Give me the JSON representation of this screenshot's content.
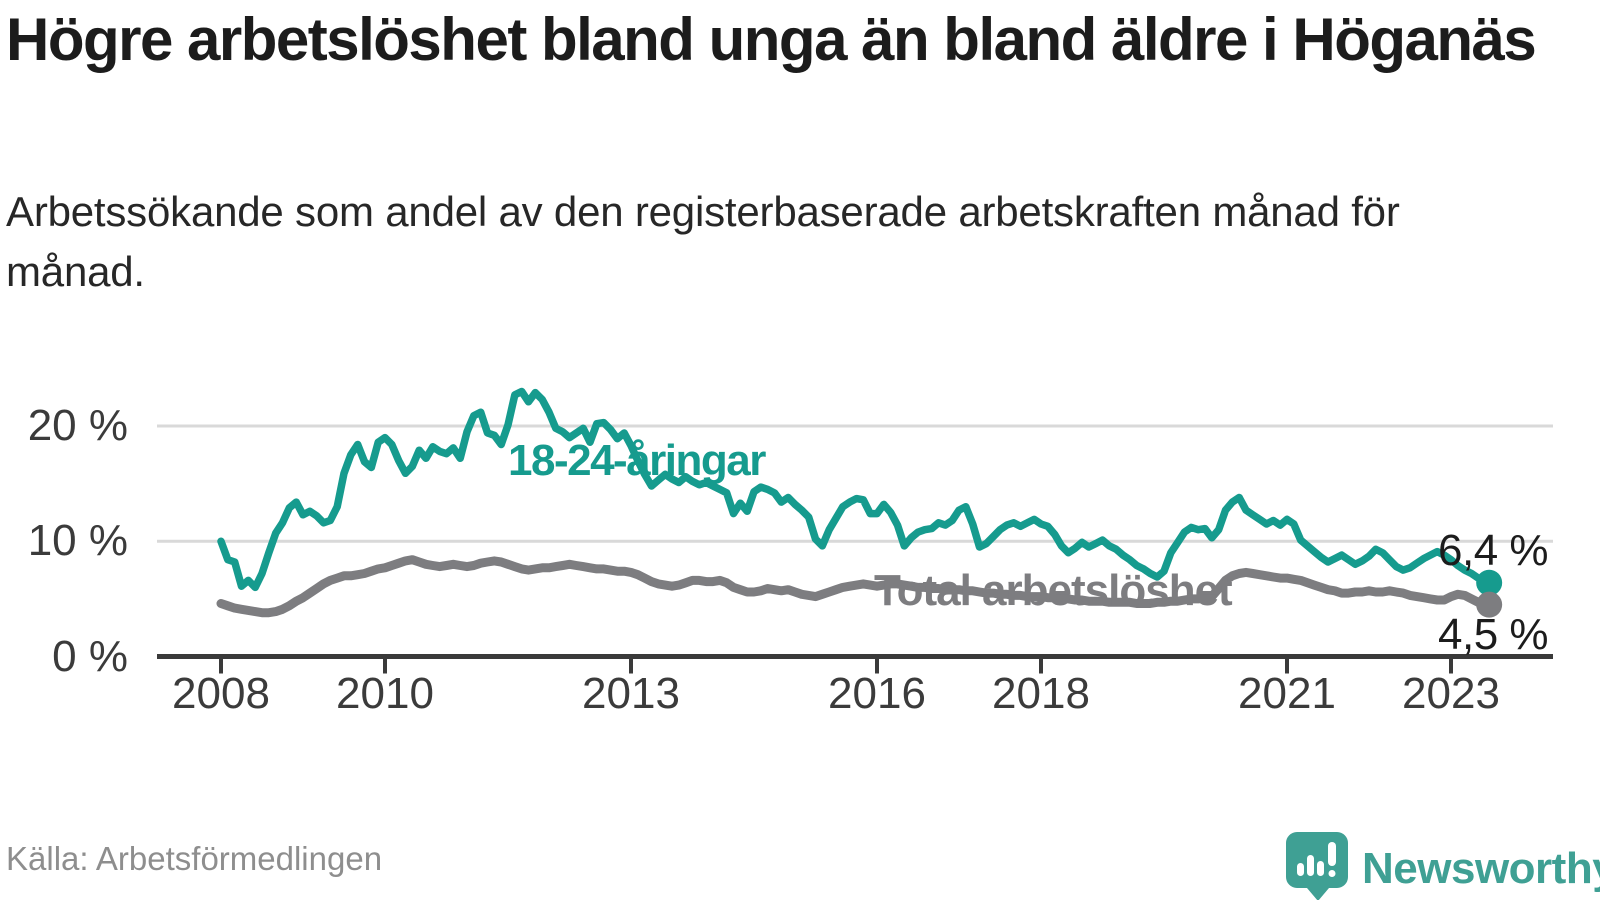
{
  "title": "Högre arbetslöshet bland unga än bland äldre i Höganäs",
  "subtitle": "Arbetssökande som andel av den registerbaserade arbetskraften månad för månad.",
  "source": "Källa: Arbetsförmedlingen",
  "branding": {
    "name": "Newsworthy",
    "icon": "speech-bubble-bar-chart-icon",
    "color": "#3fa094"
  },
  "colors": {
    "youth_line": "#169b8e",
    "total_line": "#7d7d80",
    "gridline": "#d9d9d9",
    "axis": "#3a3a3a",
    "value_label": "#1c1c1c"
  },
  "chart_data": {
    "type": "line",
    "title": "Högre arbetslöshet bland unga än bland äldre i Höganäs",
    "xlabel": "",
    "ylabel": "Arbetssökande som andel av den registerbaserade arbetskraften",
    "x_unit": "month",
    "x_start": "2008-01",
    "x_end": "2023-06",
    "ylim": [
      0,
      24
    ],
    "grid": "horizontal",
    "legend_position": "inline-annotations",
    "yticks": [
      {
        "value": 0,
        "label": "0 %"
      },
      {
        "value": 10,
        "label": "10 %"
      },
      {
        "value": 20,
        "label": "20 %"
      }
    ],
    "xticks": [
      {
        "value": 2008,
        "label": "2008"
      },
      {
        "value": 2010,
        "label": "2010"
      },
      {
        "value": 2013,
        "label": "2013"
      },
      {
        "value": 2016,
        "label": "2016"
      },
      {
        "value": 2018,
        "label": "2018"
      },
      {
        "value": 2021,
        "label": "2021"
      },
      {
        "value": 2023,
        "label": "2023"
      }
    ],
    "series": [
      {
        "name": "18-24-åringar",
        "color": "#169b8e",
        "end_label": "6,4 %",
        "end_value": 6.4,
        "values": [
          10.0,
          8.4,
          8.2,
          6.1,
          6.6,
          6.0,
          7.2,
          9.0,
          10.7,
          11.6,
          12.9,
          13.4,
          12.3,
          12.6,
          12.2,
          11.6,
          11.8,
          13.0,
          15.9,
          17.5,
          18.4,
          16.9,
          16.4,
          18.6,
          19.0,
          18.4,
          17.0,
          15.9,
          16.5,
          17.9,
          17.2,
          18.2,
          17.8,
          17.6,
          18.1,
          17.2,
          19.5,
          20.9,
          21.2,
          19.4,
          19.2,
          18.4,
          20.1,
          22.7,
          23.0,
          22.1,
          22.9,
          22.3,
          21.2,
          19.8,
          19.5,
          19.0,
          19.4,
          19.8,
          18.6,
          20.2,
          20.3,
          19.7,
          18.9,
          19.4,
          18.3,
          17.0,
          15.8,
          14.8,
          15.3,
          15.8,
          15.4,
          15.1,
          15.6,
          15.2,
          14.9,
          15.1,
          14.8,
          14.5,
          14.2,
          12.4,
          13.3,
          12.6,
          14.3,
          14.7,
          14.5,
          14.2,
          13.4,
          13.8,
          13.2,
          12.7,
          12.1,
          10.2,
          9.6,
          11.0,
          12.0,
          13.0,
          13.4,
          13.7,
          13.6,
          12.4,
          12.4,
          13.2,
          12.5,
          11.4,
          9.6,
          10.3,
          10.8,
          11.0,
          11.1,
          11.6,
          11.4,
          11.8,
          12.7,
          13.0,
          11.5,
          9.5,
          9.8,
          10.4,
          11.0,
          11.4,
          11.6,
          11.3,
          11.6,
          11.9,
          11.5,
          11.3,
          10.6,
          9.6,
          9.0,
          9.4,
          9.9,
          9.5,
          9.8,
          10.1,
          9.6,
          9.3,
          8.8,
          8.4,
          7.9,
          7.6,
          7.2,
          6.9,
          7.4,
          9.0,
          9.9,
          10.8,
          11.2,
          11.0,
          11.1,
          10.3,
          11.0,
          12.7,
          13.4,
          13.8,
          12.7,
          12.3,
          11.9,
          11.5,
          11.8,
          11.4,
          11.9,
          11.5,
          10.1,
          9.6,
          9.1,
          8.6,
          8.2,
          8.5,
          8.8,
          8.4,
          8.0,
          8.3,
          8.7,
          9.3,
          9.0,
          8.4,
          7.8,
          7.5,
          7.7,
          8.1,
          8.5,
          8.8,
          9.1,
          8.8,
          8.4,
          7.9,
          7.5,
          7.2,
          6.8,
          6.4
        ]
      },
      {
        "name": "Total arbetslöshet",
        "color": "#7d7d80",
        "end_label": "4,5 %",
        "end_value": 4.5,
        "values": [
          4.6,
          4.4,
          4.2,
          4.1,
          4.0,
          3.9,
          3.8,
          3.8,
          3.9,
          4.1,
          4.4,
          4.8,
          5.1,
          5.5,
          5.9,
          6.3,
          6.6,
          6.8,
          7.0,
          7.0,
          7.1,
          7.2,
          7.4,
          7.6,
          7.7,
          7.9,
          8.1,
          8.3,
          8.4,
          8.2,
          8.0,
          7.9,
          7.8,
          7.9,
          8.0,
          7.9,
          7.8,
          7.9,
          8.1,
          8.2,
          8.3,
          8.2,
          8.0,
          7.8,
          7.6,
          7.5,
          7.6,
          7.7,
          7.7,
          7.8,
          7.9,
          8.0,
          7.9,
          7.8,
          7.7,
          7.6,
          7.6,
          7.5,
          7.4,
          7.4,
          7.3,
          7.1,
          6.8,
          6.5,
          6.3,
          6.2,
          6.1,
          6.2,
          6.4,
          6.6,
          6.6,
          6.5,
          6.5,
          6.6,
          6.4,
          6.0,
          5.8,
          5.6,
          5.6,
          5.7,
          5.9,
          5.8,
          5.7,
          5.8,
          5.6,
          5.4,
          5.3,
          5.2,
          5.4,
          5.6,
          5.8,
          6.0,
          6.1,
          6.2,
          6.3,
          6.2,
          6.1,
          6.2,
          6.3,
          6.3,
          6.2,
          6.1,
          6.0,
          6.0,
          5.9,
          5.9,
          5.8,
          5.8,
          5.8,
          5.7,
          5.7,
          5.6,
          5.5,
          5.5,
          5.4,
          5.4,
          5.3,
          5.3,
          5.2,
          5.2,
          5.2,
          5.1,
          5.1,
          5.0,
          5.0,
          4.9,
          4.9,
          4.8,
          4.8,
          4.8,
          4.7,
          4.7,
          4.7,
          4.7,
          4.6,
          4.6,
          4.6,
          4.7,
          4.7,
          4.8,
          4.8,
          4.9,
          5.0,
          5.0,
          5.1,
          5.2,
          5.9,
          6.6,
          7.0,
          7.2,
          7.3,
          7.2,
          7.1,
          7.0,
          6.9,
          6.8,
          6.8,
          6.7,
          6.6,
          6.4,
          6.2,
          6.0,
          5.8,
          5.7,
          5.5,
          5.5,
          5.6,
          5.6,
          5.7,
          5.6,
          5.6,
          5.7,
          5.6,
          5.5,
          5.3,
          5.2,
          5.1,
          5.0,
          4.9,
          4.9,
          5.2,
          5.4,
          5.3,
          5.0,
          4.7,
          4.5
        ]
      }
    ]
  }
}
